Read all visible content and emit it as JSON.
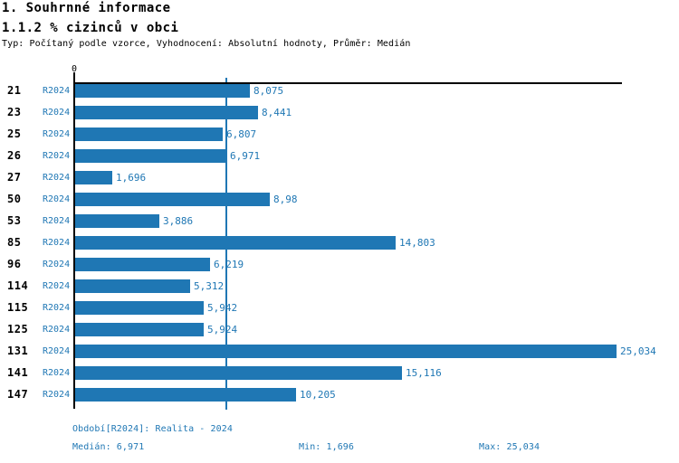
{
  "header": {
    "title": "1. Souhrnné informace",
    "subtitle": "1.1.2 % cizinců v obci",
    "meta": "Typ: Počítaný podle vzorce, Vyhodnocení: Absolutní hodnoty, Průměr: Medián"
  },
  "chart_data": {
    "type": "bar",
    "orientation": "horizontal",
    "title": "1.1.2 % cizinců v obci",
    "series_label": "R2024",
    "categories": [
      "21",
      "23",
      "25",
      "26",
      "27",
      "50",
      "53",
      "85",
      "96",
      "114",
      "115",
      "125",
      "131",
      "141",
      "147"
    ],
    "values": [
      8.075,
      8.441,
      6.807,
      6.971,
      1.696,
      8.98,
      3.886,
      14.803,
      6.219,
      5.312,
      5.942,
      5.924,
      25.034,
      15.116,
      10.205
    ],
    "value_labels": [
      "8,075",
      "8,441",
      "6,807",
      "6,971",
      "1,696",
      "8,98",
      "3,886",
      "14,803",
      "6,219",
      "5,312",
      "5,942",
      "5,924",
      "25,034",
      "15,116",
      "10,205"
    ],
    "x_axis": {
      "zero_label": "0",
      "min": 0,
      "max": 25.3
    },
    "median_value": 6.971,
    "bar_color": "#1f77b4",
    "grid": "median-line-only",
    "legend_position": "none"
  },
  "footer": {
    "period": "Období[R2024]: Realita - 2024",
    "median": "Medián: 6,971",
    "min": "Min: 1,696",
    "max": "Max: 25,034"
  },
  "colors": {
    "accent": "#1f77b4",
    "text": "#000000",
    "background": "#ffffff"
  }
}
